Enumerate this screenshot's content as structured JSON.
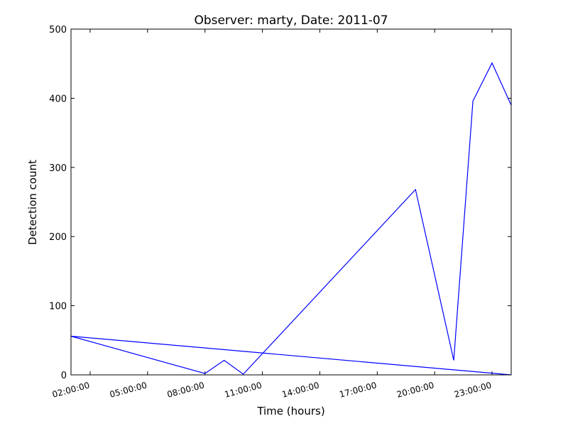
{
  "chart_data": {
    "type": "line",
    "title": "Observer: marty, Date: 2011-07",
    "xlabel": "Time (hours)",
    "ylabel": "Detection count",
    "ylim": [
      0,
      500
    ],
    "xlim": [
      "01:00:00",
      "24:00:00"
    ],
    "y_ticks": [
      0,
      100,
      200,
      300,
      400,
      500
    ],
    "x_ticks": [
      "02:00:00",
      "05:00:00",
      "08:00:00",
      "11:00:00",
      "14:00:00",
      "17:00:00",
      "20:00:00",
      "23:00:00"
    ],
    "grid": false,
    "line_color": "#0000ff",
    "series": [
      {
        "x": [
          "24:00:00",
          "01:00:00",
          "08:00:00",
          "09:00:00",
          "10:00:00",
          "19:00:00",
          "21:00:00",
          "22:00:00",
          "23:00:00",
          "24:00:00"
        ],
        "values": [
          0,
          56,
          2,
          21,
          1,
          268,
          21,
          396,
          451,
          390
        ]
      }
    ]
  }
}
